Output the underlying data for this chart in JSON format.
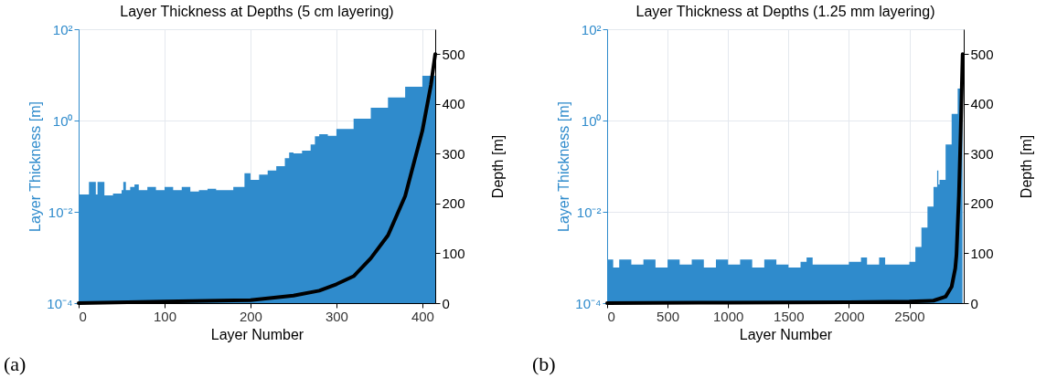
{
  "chart_data": [
    {
      "type": "area",
      "title": "Layer Thickness at Depths (5 cm layering)",
      "xlabel": "Layer Number",
      "ylabel": "Layer Thickness [m]",
      "y2label": "Depth [m]",
      "annotations": [
        "(a)"
      ],
      "log": "y",
      "grid": true,
      "xlim": [
        0,
        415
      ],
      "xticks": [
        0,
        100,
        200,
        300,
        400
      ],
      "ylim": [
        0.0001,
        100
      ],
      "yticks": [
        {
          "value": 0.0001,
          "label": "10⁻⁴"
        },
        {
          "value": 0.01,
          "label": "10⁻²"
        },
        {
          "value": 1,
          "label": "10⁰"
        },
        {
          "value": 100,
          "label": "10²"
        }
      ],
      "y2lim": [
        0,
        550
      ],
      "y2ticks": [
        0,
        100,
        200,
        300,
        400,
        500
      ],
      "series": [
        {
          "color": "#2f8bcc",
          "x": [
            0,
            10,
            12,
            20,
            22,
            30,
            40,
            50,
            52,
            55,
            60,
            65,
            70,
            80,
            90,
            100,
            110,
            120,
            130,
            140,
            150,
            160,
            170,
            180,
            190,
            193,
            200,
            210,
            220,
            230,
            240,
            245,
            250,
            260,
            270,
            275,
            280,
            290,
            300,
            320,
            340,
            360,
            380,
            400,
            415
          ],
          "values": [
            0.024,
            0.024,
            0.045,
            0.024,
            0.045,
            0.023,
            0.025,
            0.03,
            0.045,
            0.03,
            0.035,
            0.04,
            0.03,
            0.035,
            0.03,
            0.035,
            0.03,
            0.035,
            0.028,
            0.03,
            0.032,
            0.03,
            0.03,
            0.035,
            0.035,
            0.07,
            0.05,
            0.065,
            0.08,
            0.1,
            0.15,
            0.2,
            0.19,
            0.22,
            0.3,
            0.45,
            0.5,
            0.46,
            0.65,
            1.1,
            1.9,
            3.2,
            5.5,
            9.5,
            12
          ]
        },
        {
          "type": "line",
          "axis": "y2",
          "color": "#000000",
          "x": [
            0,
            100,
            200,
            250,
            280,
            300,
            320,
            340,
            360,
            380,
            400,
            410,
            415
          ],
          "values": [
            0,
            3,
            6,
            15,
            25,
            38,
            54,
            90,
            136,
            215,
            346,
            438,
            500
          ]
        }
      ]
    },
    {
      "type": "area",
      "title": "Layer Thickness at Depths (1.25 mm layering)",
      "xlabel": "Layer Number",
      "ylabel": "Layer Thickness [m]",
      "y2label": "Depth [m]",
      "annotations": [
        "(b)"
      ],
      "log": "y",
      "grid": true,
      "xlim": [
        0,
        2950
      ],
      "xticks": [
        0,
        500,
        1000,
        1500,
        2000,
        2500
      ],
      "ylim": [
        0.0001,
        100
      ],
      "yticks": [
        {
          "value": 0.0001,
          "label": "10⁻⁴"
        },
        {
          "value": 0.01,
          "label": "10⁻²"
        },
        {
          "value": 1,
          "label": "10⁰"
        },
        {
          "value": 100,
          "label": "10²"
        }
      ],
      "y2lim": [
        0,
        550
      ],
      "y2ticks": [
        0,
        100,
        200,
        300,
        400,
        500
      ],
      "series": [
        {
          "color": "#2f8bcc",
          "x": [
            0,
            50,
            100,
            200,
            300,
            400,
            500,
            600,
            700,
            800,
            900,
            1000,
            1100,
            1200,
            1300,
            1400,
            1500,
            1600,
            1650,
            1700,
            1800,
            1900,
            2000,
            2100,
            2150,
            2250,
            2300,
            2400,
            2500,
            2550,
            2600,
            2650,
            2700,
            2730,
            2740,
            2750,
            2800,
            2850,
            2900,
            2940
          ],
          "values": [
            0.0009,
            0.0006,
            0.0009,
            0.0007,
            0.0009,
            0.0006,
            0.0009,
            0.0007,
            0.0009,
            0.0006,
            0.0009,
            0.0007,
            0.0009,
            0.0006,
            0.0009,
            0.0007,
            0.0006,
            0.0008,
            0.001,
            0.0007,
            0.0007,
            0.0007,
            0.0008,
            0.001,
            0.0007,
            0.001,
            0.0007,
            0.0007,
            0.0008,
            0.0017,
            0.0045,
            0.013,
            0.035,
            0.08,
            0.04,
            0.05,
            0.3,
            1.4,
            5,
            8
          ]
        },
        {
          "type": "line",
          "axis": "y2",
          "color": "#000000",
          "x": [
            0,
            1000,
            2000,
            2500,
            2700,
            2800,
            2850,
            2880,
            2890,
            2910,
            2925,
            2941
          ],
          "values": [
            0,
            1,
            2,
            3,
            5,
            13,
            33,
            70,
            97,
            215,
            346,
            500
          ]
        }
      ]
    }
  ]
}
